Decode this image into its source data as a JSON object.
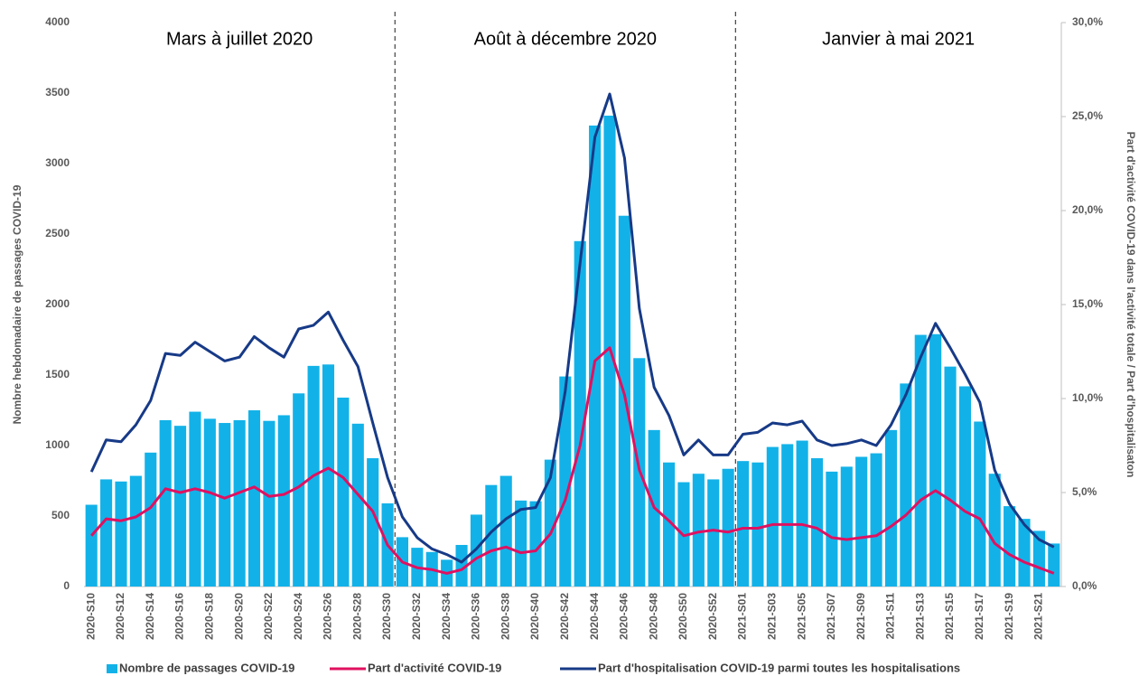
{
  "chart_data": {
    "type": "bar-line",
    "categories": [
      "2020-S10",
      null,
      "2020-S12",
      null,
      "2020-S14",
      null,
      "2020-S16",
      null,
      "2020-S18",
      null,
      "2020-S20",
      null,
      "2020-S22",
      null,
      "2020-S24",
      null,
      "2020-S26",
      null,
      "2020-S28",
      null,
      "2020-S30",
      null,
      "2020-S32",
      null,
      "2020-S34",
      null,
      "2020-S36",
      null,
      "2020-S38",
      null,
      "2020-S40",
      null,
      "2020-S42",
      null,
      "2020-S44",
      null,
      "2020-S46",
      null,
      "2020-S48",
      null,
      "2020-S50",
      null,
      "2020-S52",
      null,
      "2021-S01",
      null,
      "2021-S03",
      null,
      "2021-S05",
      null,
      "2021-S07",
      null,
      "2021-S09",
      null,
      "2021-S11",
      null,
      "2021-S13",
      null,
      "2021-S15",
      null,
      "2021-S17",
      null,
      "2021-S19",
      null,
      "2021-S21",
      null
    ],
    "periods": [
      "Mars à juillet 2020",
      "Août à décembre 2020",
      "Janvier à mai 2021"
    ],
    "ylabel": "Nombre hebdomadaire de passages COVID-19",
    "y2label": "Part d'activité COVID-19 dans l'activité totale / Part d'hospitalisaton",
    "ylim": [
      0,
      4000
    ],
    "yticks": [
      0,
      500,
      1000,
      1500,
      2000,
      2500,
      3000,
      3500,
      4000
    ],
    "y2lim": [
      0,
      30
    ],
    "y2ticks": [
      {
        "value": 0,
        "label": "0,0%"
      },
      {
        "value": 5,
        "label": "5,0%"
      },
      {
        "value": 10,
        "label": "10,0%"
      },
      {
        "value": 15,
        "label": "15,0%"
      },
      {
        "value": 20,
        "label": "20,0%"
      },
      {
        "value": 25,
        "label": "25,0%"
      },
      {
        "value": 30,
        "label": "30,0%"
      }
    ],
    "series": [
      {
        "name": "Nombre de passages COVID-19",
        "type": "bar",
        "color": "#12b2e8",
        "values": [
          580,
          760,
          745,
          785,
          950,
          1180,
          1140,
          1240,
          1190,
          1160,
          1180,
          1250,
          1175,
          1215,
          1370,
          1565,
          1575,
          1340,
          1155,
          910,
          590,
          350,
          275,
          245,
          190,
          295,
          510,
          720,
          785,
          610,
          605,
          900,
          1490,
          2450,
          3270,
          3340,
          2630,
          1620,
          1110,
          880,
          740,
          800,
          760,
          835,
          890,
          880,
          990,
          1010,
          1035,
          910,
          815,
          850,
          920,
          945,
          1110,
          1440,
          1785,
          1790,
          1560,
          1420,
          1170,
          800,
          570,
          480,
          395,
          305
        ]
      },
      {
        "name": "Part d'activité COVID-19",
        "type": "line",
        "axis": "y2",
        "color": "#e0115f",
        "values": [
          2.7,
          3.6,
          3.5,
          3.7,
          4.2,
          5.2,
          5.0,
          5.2,
          5.0,
          4.7,
          5.0,
          5.3,
          4.8,
          4.9,
          5.3,
          5.9,
          6.3,
          5.8,
          4.9,
          4.0,
          2.2,
          1.3,
          1.0,
          0.9,
          0.7,
          0.9,
          1.5,
          1.9,
          2.1,
          1.8,
          1.9,
          2.8,
          4.6,
          7.5,
          12.0,
          12.7,
          10.2,
          6.2,
          4.2,
          3.5,
          2.7,
          2.9,
          3.0,
          2.9,
          3.1,
          3.1,
          3.3,
          3.3,
          3.3,
          3.1,
          2.6,
          2.5,
          2.6,
          2.7,
          3.2,
          3.8,
          4.6,
          5.1,
          4.6,
          4.0,
          3.6,
          2.3,
          1.7,
          1.3,
          1.0,
          0.7
        ]
      },
      {
        "name": "Part d'hospitalisation COVID-19 parmi toutes les hospitalisations",
        "type": "line",
        "axis": "y2",
        "color": "#173a87",
        "values": [
          6.1,
          7.8,
          7.7,
          8.6,
          9.9,
          12.4,
          12.3,
          13.0,
          12.5,
          12.0,
          12.2,
          13.3,
          12.7,
          12.2,
          13.7,
          13.9,
          14.6,
          13.1,
          11.7,
          8.7,
          5.8,
          3.7,
          2.6,
          2.0,
          1.7,
          1.3,
          2.0,
          2.9,
          3.6,
          4.1,
          4.2,
          5.8,
          10.4,
          17.2,
          23.9,
          26.2,
          22.8,
          14.8,
          10.6,
          9.1,
          7.0,
          7.8,
          7.0,
          7.0,
          8.1,
          8.2,
          8.7,
          8.6,
          8.8,
          7.8,
          7.5,
          7.6,
          7.8,
          7.5,
          8.6,
          10.2,
          12.2,
          14.0,
          12.7,
          11.3,
          9.8,
          6.2,
          4.4,
          3.3,
          2.5,
          2.1
        ]
      }
    ]
  }
}
